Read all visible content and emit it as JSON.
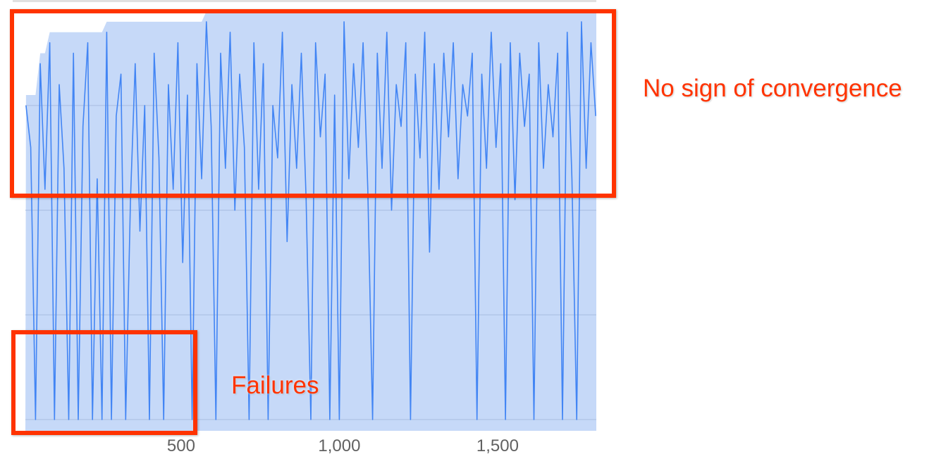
{
  "chart_data": {
    "type": "line",
    "title": "",
    "xlabel": "",
    "ylabel": "",
    "xlim": [
      8,
      1812
    ],
    "x_ticks": [
      500,
      1000,
      1500
    ],
    "x_tick_labels": [
      "500",
      "1,000",
      "1,500"
    ],
    "y_gridlines": [
      0,
      1,
      2,
      3
    ],
    "y_tick_labels": [],
    "grid": true,
    "line_color": "#4285f4",
    "band_color": "#c6d9f8",
    "x_start": 10,
    "x_step": 15,
    "values": [
      3.0,
      2.6,
      0,
      3.4,
      2.2,
      3.6,
      0,
      3.2,
      2.4,
      0,
      3.5,
      0,
      2.8,
      3.6,
      0,
      2.3,
      0,
      3.7,
      0,
      2.9,
      3.3,
      0,
      2.1,
      3.4,
      1.8,
      3.0,
      0,
      3.5,
      2.5,
      0,
      3.2,
      2.2,
      3.6,
      1.5,
      3.1,
      0,
      3.4,
      2.3,
      3.8,
      2.8,
      0,
      3.5,
      2.4,
      3.7,
      2.0,
      3.3,
      2.6,
      0,
      3.6,
      2.2,
      3.4,
      0,
      3.0,
      2.5,
      3.7,
      1.7,
      3.2,
      2.4,
      3.5,
      2.1,
      0,
      3.6,
      2.7,
      3.3,
      0,
      3.1,
      0,
      3.8,
      2.3,
      3.4,
      2.6,
      3.6,
      2.2,
      0,
      3.5,
      2.4,
      3.7,
      2.0,
      3.2,
      2.8,
      3.6,
      0,
      3.3,
      2.5,
      3.7,
      1.6,
      3.4,
      2.2,
      3.5,
      2.7,
      3.6,
      2.3,
      3.2,
      2.9,
      3.5,
      0,
      3.3,
      2.4,
      3.7,
      2.6,
      3.4,
      0,
      3.6,
      2.1,
      3.5,
      2.8,
      3.3,
      0,
      3.6,
      2.4,
      3.2,
      2.7,
      3.5,
      0,
      3.7,
      2.3,
      0,
      3.8,
      2.4,
      3.6,
      2.9
    ]
  },
  "annotations": {
    "convergence_label": "No sign of convergence",
    "failures_label": "Failures",
    "color": "#ff3300"
  }
}
